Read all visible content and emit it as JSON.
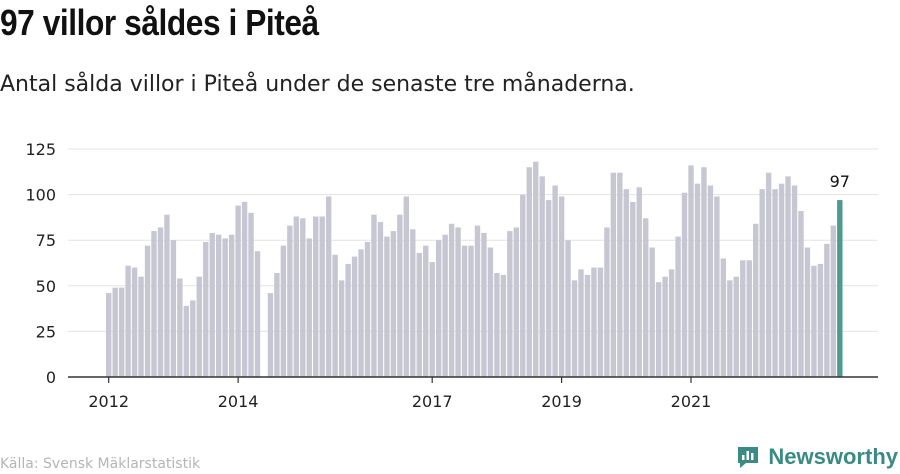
{
  "header": {
    "title": "97 villor såldes i Piteå",
    "subtitle": "Antal sålda villor i Piteå under de senaste tre månaderna."
  },
  "footer": {
    "source": "Källa: Svensk Mäklarstatistik",
    "brand": "Newsworthy",
    "brand_icon": "newsworthy-logo-icon"
  },
  "colors": {
    "bar": "#c7c7d3",
    "highlight": "#4e9a8e",
    "grid": "#e3e3e3",
    "axis": "#333333",
    "text": "#222222"
  },
  "chart_data": {
    "type": "bar",
    "title": "97 villor såldes i Piteå",
    "subtitle": "Antal sålda villor i Piteå under de senaste tre månaderna.",
    "xlabel": "",
    "ylabel": "",
    "ylim": [
      0,
      125
    ],
    "yticks": [
      0,
      25,
      50,
      75,
      100,
      125
    ],
    "xticks": [
      {
        "label": "2012",
        "index": 0
      },
      {
        "label": "2014",
        "index": 20
      },
      {
        "label": "2017",
        "index": 50
      },
      {
        "label": "2019",
        "index": 70
      },
      {
        "label": "2021",
        "index": 90
      }
    ],
    "grid": true,
    "values": [
      46,
      49,
      49,
      61,
      60,
      55,
      72,
      80,
      82,
      89,
      75,
      54,
      39,
      42,
      55,
      74,
      79,
      78,
      76,
      78,
      94,
      96,
      90,
      69,
      null,
      46,
      57,
      72,
      83,
      88,
      87,
      76,
      88,
      88,
      99,
      67,
      53,
      62,
      66,
      70,
      74,
      89,
      85,
      77,
      80,
      89,
      99,
      81,
      68,
      72,
      63,
      75,
      78,
      84,
      82,
      72,
      72,
      83,
      79,
      71,
      57,
      56,
      80,
      82,
      100,
      115,
      118,
      110,
      97,
      105,
      99,
      75,
      53,
      59,
      56,
      60,
      60,
      82,
      112,
      112,
      103,
      96,
      104,
      87,
      71,
      52,
      55,
      59,
      77,
      101,
      116,
      106,
      115,
      105,
      99,
      65,
      53,
      55,
      64,
      64,
      84,
      103,
      112,
      103,
      106,
      110,
      105,
      91,
      71,
      61,
      62,
      73,
      83,
      97
    ],
    "highlight_label": "97",
    "highlight_last": true
  }
}
